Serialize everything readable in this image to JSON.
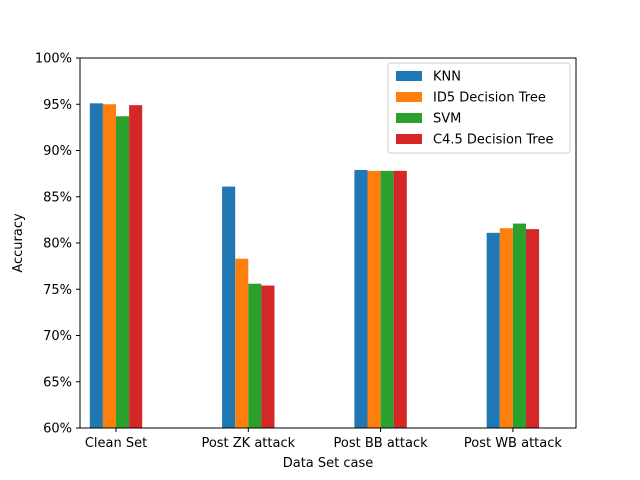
{
  "chart_data": {
    "type": "bar",
    "title": "",
    "xlabel": "Data Set case",
    "ylabel": "Accuracy",
    "categories": [
      "Clean Set",
      "Post ZK attack",
      "Post BB attack",
      "Post WB attack"
    ],
    "ylim": [
      0.6,
      1.0
    ],
    "yticks": [
      0.6,
      0.65,
      0.7,
      0.75,
      0.8,
      0.85,
      0.9,
      0.95,
      1.0
    ],
    "ytick_labels": [
      "60%",
      "65%",
      "70%",
      "75%",
      "80%",
      "85%",
      "90%",
      "95%",
      "100%"
    ],
    "grid": false,
    "legend_position": "top-right",
    "series": [
      {
        "name": "KNN",
        "color": "#1f77b4",
        "values": [
          0.951,
          0.861,
          0.879,
          0.811
        ]
      },
      {
        "name": "ID5 Decision Tree",
        "color": "#ff7f0e",
        "values": [
          0.95,
          0.783,
          0.878,
          0.816
        ]
      },
      {
        "name": "SVM",
        "color": "#2ca02c",
        "values": [
          0.937,
          0.756,
          0.878,
          0.821
        ]
      },
      {
        "name": "C4.5 Decision Tree",
        "color": "#d62728",
        "values": [
          0.949,
          0.754,
          0.878,
          0.815
        ]
      }
    ]
  }
}
